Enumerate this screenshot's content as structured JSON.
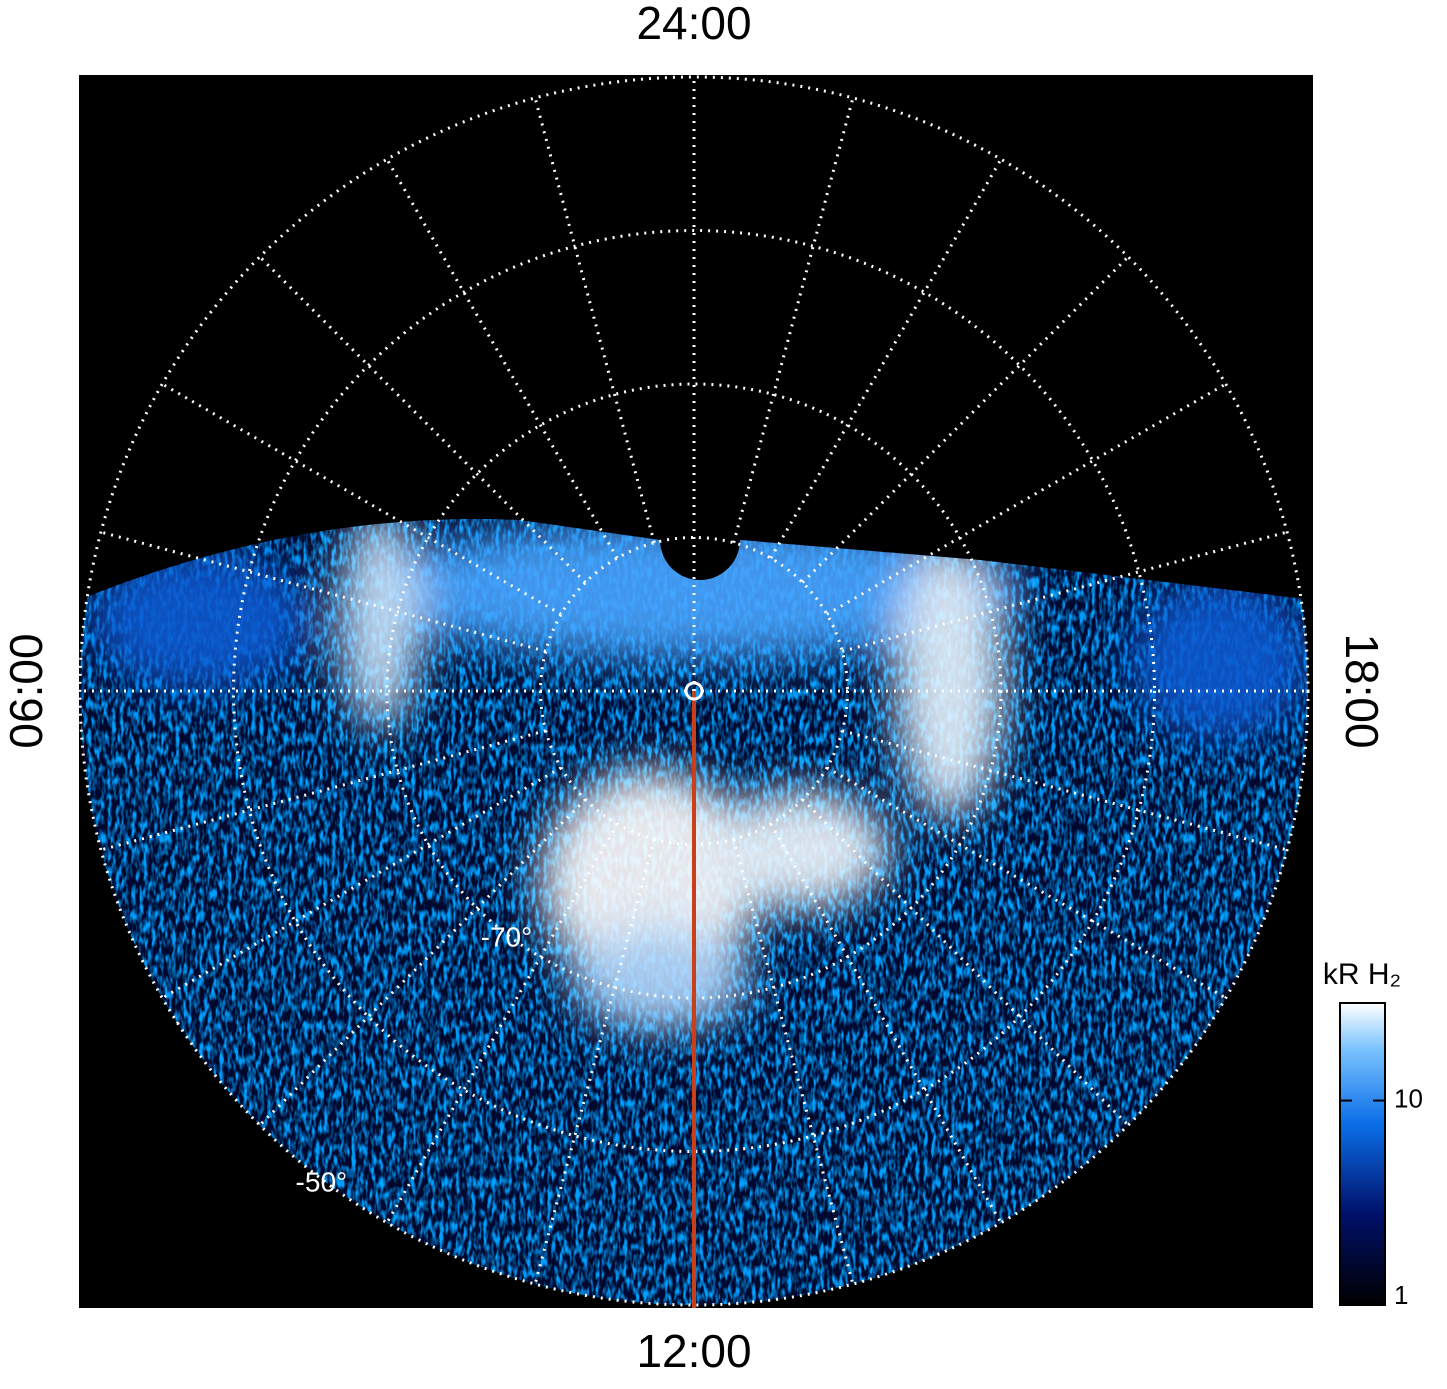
{
  "chart_data": {
    "type": "polar-image",
    "hour_lim": [
      0,
      24
    ],
    "hour_ticks": [
      {
        "value": 0,
        "label": "24:00"
      },
      {
        "value": 6,
        "label": "06:00"
      },
      {
        "value": 12,
        "label": "12:00"
      },
      {
        "value": 18,
        "label": "18:00"
      }
    ],
    "rlim": [
      -90,
      -50
    ],
    "lat_ticks": [
      {
        "value": -80,
        "label": null
      },
      {
        "value": -70,
        "label": "-70°"
      },
      {
        "value": -60,
        "label": null
      },
      {
        "value": -50,
        "label": "-50°"
      }
    ],
    "colorbar": {
      "label": "kR H₂",
      "scale": "log",
      "lim": [
        1,
        30
      ],
      "ticks": [
        1,
        10
      ]
    }
  }
}
